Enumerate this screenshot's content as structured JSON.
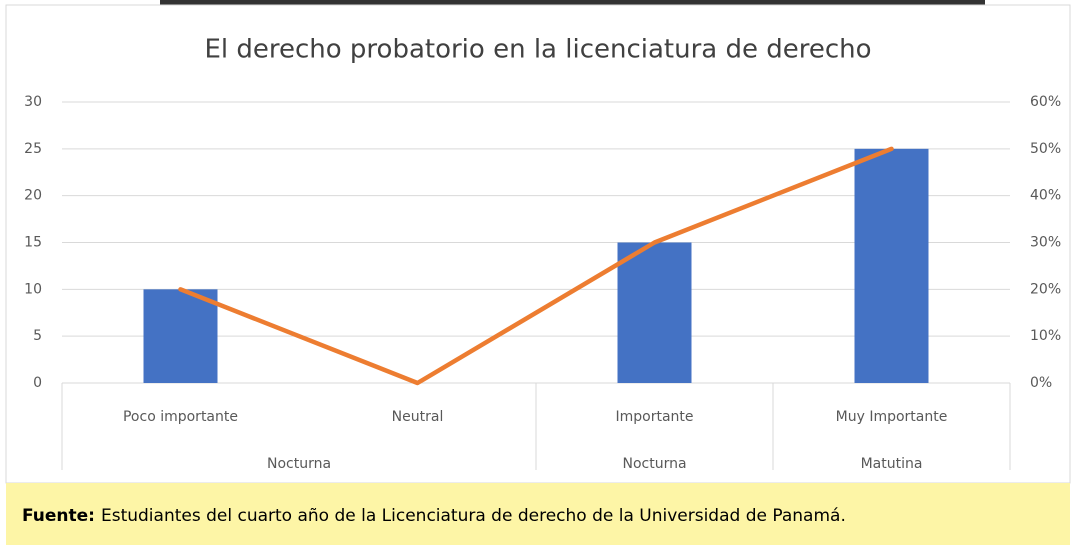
{
  "chart_data": {
    "type": "bar_line",
    "title": "El derecho probatorio en la licenciatura de derecho",
    "categories": [
      "Poco importante",
      "Neutral",
      "Importante",
      "Muy Importante"
    ],
    "groups": [
      {
        "label": "Nocturna",
        "span": 2
      },
      {
        "label": "Nocturna",
        "span": 1
      },
      {
        "label": "Matutina",
        "span": 1
      }
    ],
    "series": [
      {
        "type": "bar",
        "color": "#4472c4",
        "values": [
          10,
          0,
          15,
          25
        ]
      },
      {
        "type": "line",
        "color": "#ed7d31",
        "axis": "y2",
        "values": [
          20,
          0,
          30,
          50
        ]
      }
    ],
    "ylim": [
      0,
      30
    ],
    "yticks": [
      0,
      5,
      10,
      15,
      20,
      25,
      30
    ],
    "y2lim": [
      0,
      60
    ],
    "y2ticks": [
      {
        "value": 0,
        "label": "0%"
      },
      {
        "value": 10,
        "label": "10%"
      },
      {
        "value": 20,
        "label": "20%"
      },
      {
        "value": 30,
        "label": "30%"
      },
      {
        "value": 40,
        "label": "40%"
      },
      {
        "value": 50,
        "label": "50%"
      },
      {
        "value": 60,
        "label": "60%"
      }
    ],
    "grid": true
  },
  "footer": {
    "label": "Fuente:",
    "text": "Estudiantes del cuarto año de la Licenciatura de derecho de la Universidad de Panamá."
  }
}
